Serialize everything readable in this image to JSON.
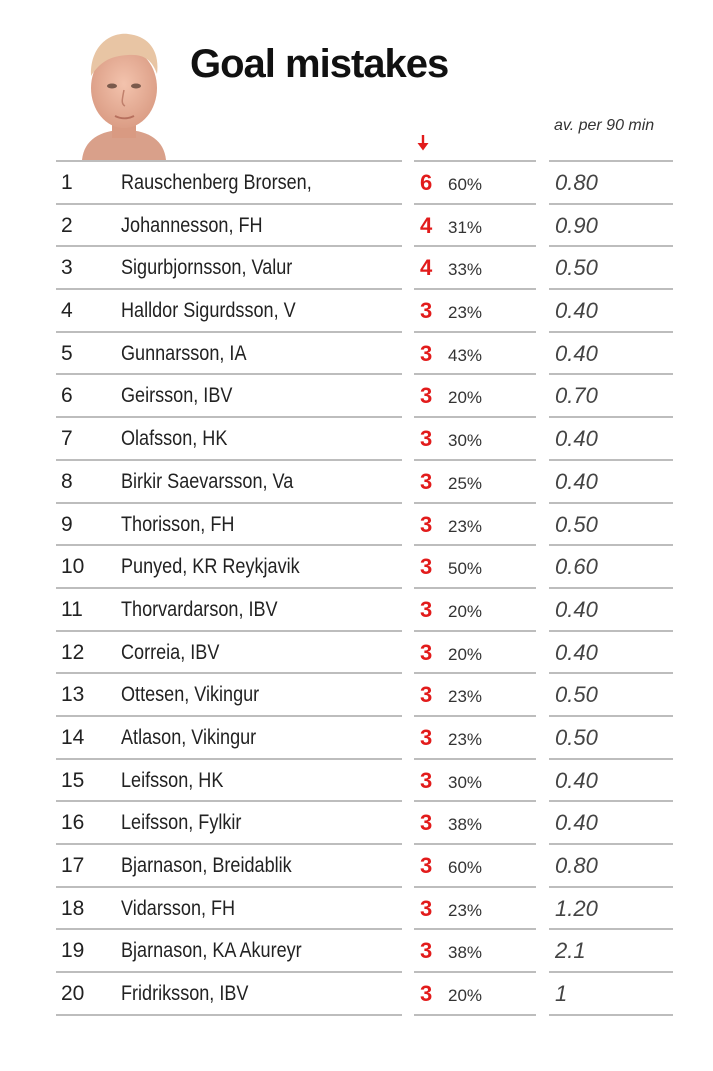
{
  "chart_data": {
    "type": "table",
    "title": "Goal mistakes",
    "avg_header": "av. per 90 min",
    "sort_indicator": "down-arrow-icon",
    "accent_color": "#e21b1b",
    "rows": [
      {
        "rank": "1",
        "player": "Rauschenberg Brorsen,",
        "mistakes": "6",
        "pct": "60%",
        "avg": "0.80"
      },
      {
        "rank": "2",
        "player": "Johannesson, FH",
        "mistakes": "4",
        "pct": "31%",
        "avg": "0.90"
      },
      {
        "rank": "3",
        "player": "Sigurbjornsson, Valur",
        "mistakes": "4",
        "pct": "33%",
        "avg": "0.50"
      },
      {
        "rank": "4",
        "player": "Halldor Sigurdsson, V",
        "mistakes": "3",
        "pct": "23%",
        "avg": "0.40"
      },
      {
        "rank": "5",
        "player": "Gunnarsson, IA",
        "mistakes": "3",
        "pct": "43%",
        "avg": "0.40"
      },
      {
        "rank": "6",
        "player": "Geirsson, IBV",
        "mistakes": "3",
        "pct": "20%",
        "avg": "0.70"
      },
      {
        "rank": "7",
        "player": "Olafsson, HK",
        "mistakes": "3",
        "pct": "30%",
        "avg": "0.40"
      },
      {
        "rank": "8",
        "player": "Birkir Saevarsson, Va",
        "mistakes": "3",
        "pct": "25%",
        "avg": "0.40"
      },
      {
        "rank": "9",
        "player": "Thorisson, FH",
        "mistakes": "3",
        "pct": "23%",
        "avg": "0.50"
      },
      {
        "rank": "10",
        "player": "Punyed, KR Reykjavik",
        "mistakes": "3",
        "pct": "50%",
        "avg": "0.60"
      },
      {
        "rank": "11",
        "player": "Thorvardarson, IBV",
        "mistakes": "3",
        "pct": "20%",
        "avg": "0.40"
      },
      {
        "rank": "12",
        "player": "Correia, IBV",
        "mistakes": "3",
        "pct": "20%",
        "avg": "0.40"
      },
      {
        "rank": "13",
        "player": "Ottesen, Vikingur",
        "mistakes": "3",
        "pct": "23%",
        "avg": "0.50"
      },
      {
        "rank": "14",
        "player": "Atlason, Vikingur",
        "mistakes": "3",
        "pct": "23%",
        "avg": "0.50"
      },
      {
        "rank": "15",
        "player": "Leifsson, HK",
        "mistakes": "3",
        "pct": "30%",
        "avg": "0.40"
      },
      {
        "rank": "16",
        "player": "Leifsson, Fylkir",
        "mistakes": "3",
        "pct": "38%",
        "avg": "0.40"
      },
      {
        "rank": "17",
        "player": "Bjarnason, Breidablik",
        "mistakes": "3",
        "pct": "60%",
        "avg": "0.80"
      },
      {
        "rank": "18",
        "player": "Vidarsson, FH",
        "mistakes": "3",
        "pct": "23%",
        "avg": "1.20"
      },
      {
        "rank": "19",
        "player": "Bjarnason, KA Akureyr",
        "mistakes": "3",
        "pct": "38%",
        "avg": "2.1"
      },
      {
        "rank": "20",
        "player": "Fridriksson, IBV",
        "mistakes": "3",
        "pct": "20%",
        "avg": "1"
      }
    ]
  }
}
